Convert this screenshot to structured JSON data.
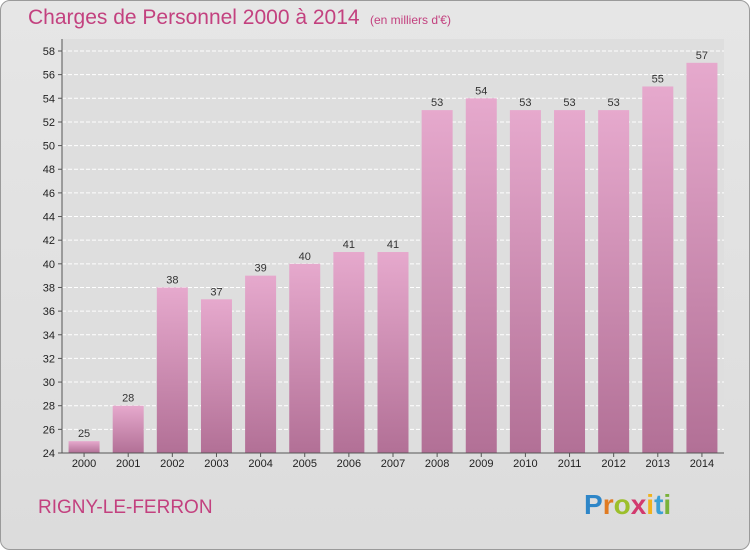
{
  "header": {
    "title": "Charges de Personnel 2000 à 2014",
    "subtitle": "(en milliers d'€)"
  },
  "footer": {
    "commune": "RIGNY-LE-FERRON",
    "logo": [
      "P",
      "r",
      "o",
      "x",
      "i",
      "t",
      "i"
    ]
  },
  "colors": {
    "bar_top": "#e6a9cd",
    "bar_bottom": "#b27096",
    "title": "#c3417f"
  },
  "chart_data": {
    "type": "bar",
    "categories": [
      "2000",
      "2001",
      "2002",
      "2003",
      "2004",
      "2005",
      "2006",
      "2007",
      "2008",
      "2009",
      "2010",
      "2011",
      "2012",
      "2013",
      "2014"
    ],
    "values": [
      25,
      28,
      38,
      37,
      39,
      40,
      41,
      41,
      53,
      54,
      53,
      53,
      53,
      55,
      57
    ],
    "title": "Charges de Personnel 2000 à 2014",
    "subtitle": "(en milliers d'€)",
    "xlabel": "",
    "ylabel": "",
    "ylim": [
      24,
      58
    ],
    "yticks": [
      24,
      26,
      28,
      30,
      32,
      34,
      36,
      38,
      40,
      42,
      44,
      46,
      48,
      50,
      52,
      54,
      56,
      58
    ],
    "grid": true
  }
}
